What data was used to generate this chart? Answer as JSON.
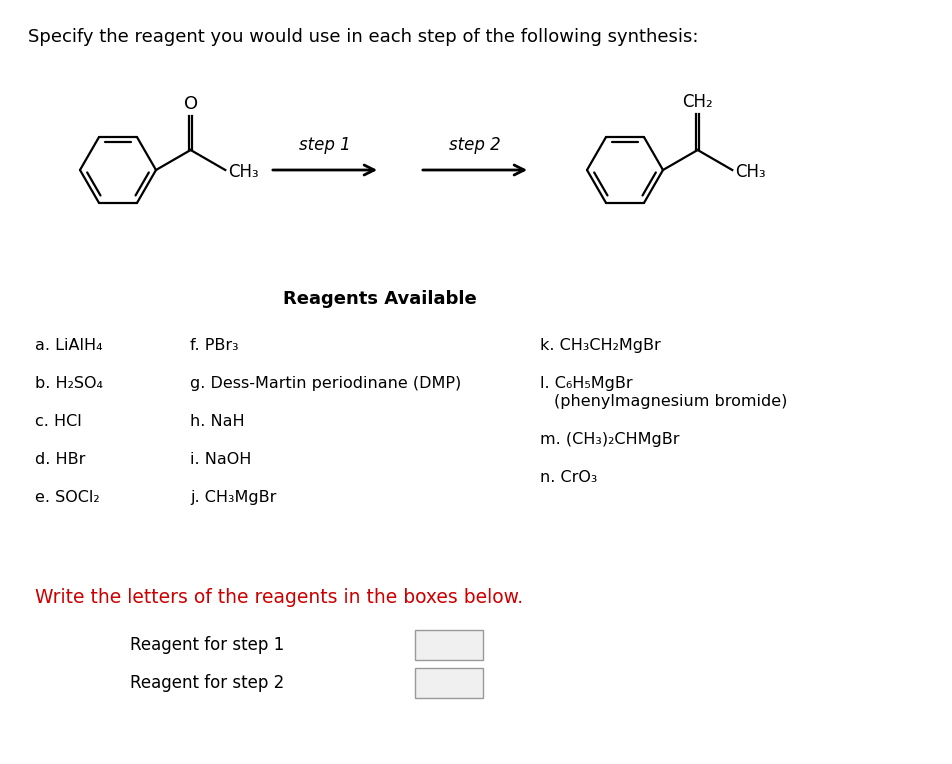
{
  "title": "Specify the reagent you would use in each step of the following synthesis:",
  "title_fontsize": 13,
  "reagents_available_title": "Reagents Available",
  "reagents_col1_plain": [
    "a. LiAlH₄",
    "b. H₂SO₄",
    "c. HCl",
    "d. HBr",
    "e. SOCl₂"
  ],
  "reagents_col2_plain": [
    "f. PBr₃",
    "g. Dess-Martin periodinane (DMP)",
    "h. NaH",
    "i. NaOH",
    "j. CH₃MgBr"
  ],
  "reagents_col3_plain": [
    "k. CH₃CH₂MgBr",
    "l. C₆H₅MgBr",
    "(phenylmagnesium bromide)",
    "m. (CH₃)₂CHMgBr",
    "n. CrO₃"
  ],
  "write_text": "Write the letters of the reagents in the boxes below.",
  "write_color": "#cc0000",
  "step1_label": "step 1",
  "step2_label": "step 2",
  "reagent_step1_label": "Reagent for step 1",
  "reagent_step2_label": "Reagent for step 2",
  "background_color": "#ffffff",
  "text_color": "#000000",
  "font_size": 11.5
}
